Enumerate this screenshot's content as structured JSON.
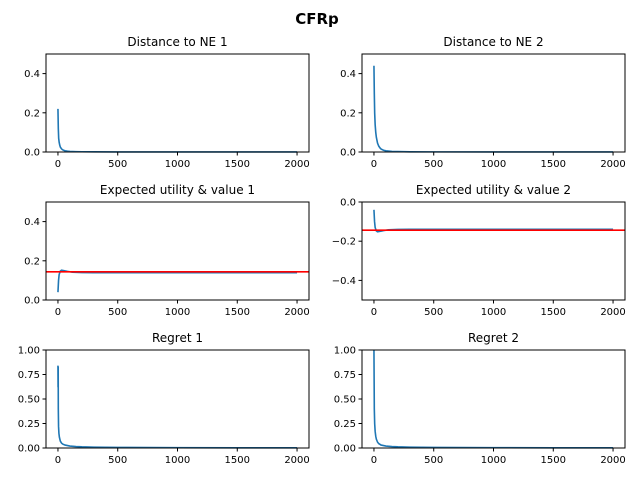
{
  "figure": {
    "title": "CFRp"
  },
  "chart_data": [
    {
      "type": "line",
      "title": "Distance to NE 1",
      "xlim": [
        -100,
        2100
      ],
      "ylim": [
        0,
        0.5
      ],
      "xticks": [
        0,
        500,
        1000,
        1500,
        2000
      ],
      "xtick_labels": [
        "0",
        "500",
        "1000",
        "1500",
        "2000"
      ],
      "yticks": [
        0,
        0.2,
        0.4
      ],
      "ytick_labels": [
        "0.0",
        "0.2",
        "0.4"
      ],
      "series": [
        {
          "name": "distance",
          "color": "#1f77b4",
          "x": [
            0,
            3,
            6,
            10,
            15,
            20,
            30,
            40,
            50,
            60,
            80,
            100,
            150,
            200,
            300,
            500,
            1000,
            2000
          ],
          "y": [
            0.22,
            0.12,
            0.07,
            0.05,
            0.035,
            0.025,
            0.016,
            0.011,
            0.008,
            0.006,
            0.004,
            0.003,
            0.0018,
            0.0012,
            0.0008,
            0.0005,
            0.0002,
            0.0001
          ]
        }
      ]
    },
    {
      "type": "line",
      "title": "Distance to NE 2",
      "xlim": [
        -100,
        2100
      ],
      "ylim": [
        0,
        0.5
      ],
      "xticks": [
        0,
        500,
        1000,
        1500,
        2000
      ],
      "xtick_labels": [
        "0",
        "500",
        "1000",
        "1500",
        "2000"
      ],
      "yticks": [
        0,
        0.2,
        0.4
      ],
      "ytick_labels": [
        "0.0",
        "0.2",
        "0.4"
      ],
      "series": [
        {
          "name": "distance",
          "color": "#1f77b4",
          "x": [
            0,
            3,
            6,
            10,
            15,
            20,
            30,
            40,
            50,
            60,
            80,
            100,
            150,
            200,
            300,
            500,
            1000,
            2000
          ],
          "y": [
            0.44,
            0.3,
            0.2,
            0.14,
            0.1,
            0.075,
            0.045,
            0.03,
            0.021,
            0.015,
            0.009,
            0.006,
            0.003,
            0.002,
            0.001,
            0.0006,
            0.0003,
            0.0001
          ]
        }
      ]
    },
    {
      "type": "line",
      "title": "Expected utility & value 1",
      "xlim": [
        -100,
        2100
      ],
      "ylim": [
        0,
        0.5
      ],
      "xticks": [
        0,
        500,
        1000,
        1500,
        2000
      ],
      "xtick_labels": [
        "0",
        "500",
        "1000",
        "1500",
        "2000"
      ],
      "yticks": [
        0,
        0.2,
        0.4
      ],
      "ytick_labels": [
        "0.0",
        "0.2",
        "0.4"
      ],
      "series": [
        {
          "name": "expected utility",
          "color": "#1f77b4",
          "x": [
            0,
            5,
            10,
            20,
            30,
            50,
            80,
            120,
            200,
            300,
            500,
            1000,
            2000
          ],
          "y": [
            0.04,
            0.1,
            0.13,
            0.148,
            0.152,
            0.15,
            0.146,
            0.142,
            0.14,
            0.139,
            0.139,
            0.139,
            0.139
          ]
        }
      ],
      "hline": {
        "value": 0.144,
        "color": "#ff0000"
      }
    },
    {
      "type": "line",
      "title": "Expected utility & value 2",
      "xlim": [
        -100,
        2100
      ],
      "ylim": [
        -0.5,
        0
      ],
      "xticks": [
        0,
        500,
        1000,
        1500,
        2000
      ],
      "xtick_labels": [
        "0",
        "500",
        "1000",
        "1500",
        "2000"
      ],
      "yticks": [
        -0.4,
        -0.2,
        0
      ],
      "ytick_labels": [
        "−0.4",
        "−0.2",
        "0.0"
      ],
      "series": [
        {
          "name": "expected utility",
          "color": "#1f77b4",
          "x": [
            0,
            5,
            10,
            20,
            30,
            50,
            80,
            120,
            200,
            300,
            500,
            1000,
            2000
          ],
          "y": [
            -0.04,
            -0.1,
            -0.13,
            -0.148,
            -0.152,
            -0.15,
            -0.146,
            -0.142,
            -0.14,
            -0.139,
            -0.139,
            -0.139,
            -0.139
          ]
        }
      ],
      "hline": {
        "value": -0.144,
        "color": "#ff0000"
      }
    },
    {
      "type": "line",
      "title": "Regret 1",
      "xlim": [
        -100,
        2100
      ],
      "ylim": [
        0,
        1.0
      ],
      "xticks": [
        0,
        500,
        1000,
        1500,
        2000
      ],
      "xtick_labels": [
        "0",
        "500",
        "1000",
        "1500",
        "2000"
      ],
      "yticks": [
        0,
        0.25,
        0.5,
        0.75,
        1.0
      ],
      "ytick_labels": [
        "0.00",
        "0.25",
        "0.50",
        "0.75",
        "1.00"
      ],
      "series": [
        {
          "name": "regret",
          "color": "#1f77b4",
          "x": [
            0,
            1,
            2,
            3,
            5,
            8,
            12,
            20,
            30,
            40,
            60,
            100,
            150,
            200,
            300,
            500,
            1000,
            1500,
            2000
          ],
          "y": [
            0.84,
            0.62,
            0.83,
            0.4,
            0.22,
            0.15,
            0.11,
            0.07,
            0.05,
            0.04,
            0.03,
            0.02,
            0.015,
            0.012,
            0.009,
            0.006,
            0.003,
            0.002,
            0.0015
          ]
        }
      ]
    },
    {
      "type": "line",
      "title": "Regret 2",
      "xlim": [
        -100,
        2100
      ],
      "ylim": [
        0,
        1.0
      ],
      "xticks": [
        0,
        500,
        1000,
        1500,
        2000
      ],
      "xtick_labels": [
        "0",
        "500",
        "1000",
        "1500",
        "2000"
      ],
      "yticks": [
        0,
        0.25,
        0.5,
        0.75,
        1.0
      ],
      "ytick_labels": [
        "0.00",
        "0.25",
        "0.50",
        "0.75",
        "1.00"
      ],
      "series": [
        {
          "name": "regret",
          "color": "#1f77b4",
          "x": [
            0,
            1,
            3,
            6,
            10,
            15,
            20,
            30,
            40,
            60,
            100,
            150,
            200,
            300,
            500,
            1000,
            1500,
            2000
          ],
          "y": [
            1.0,
            0.8,
            0.4,
            0.25,
            0.17,
            0.12,
            0.09,
            0.06,
            0.045,
            0.03,
            0.02,
            0.015,
            0.012,
            0.009,
            0.006,
            0.003,
            0.002,
            0.0015
          ]
        }
      ]
    }
  ]
}
